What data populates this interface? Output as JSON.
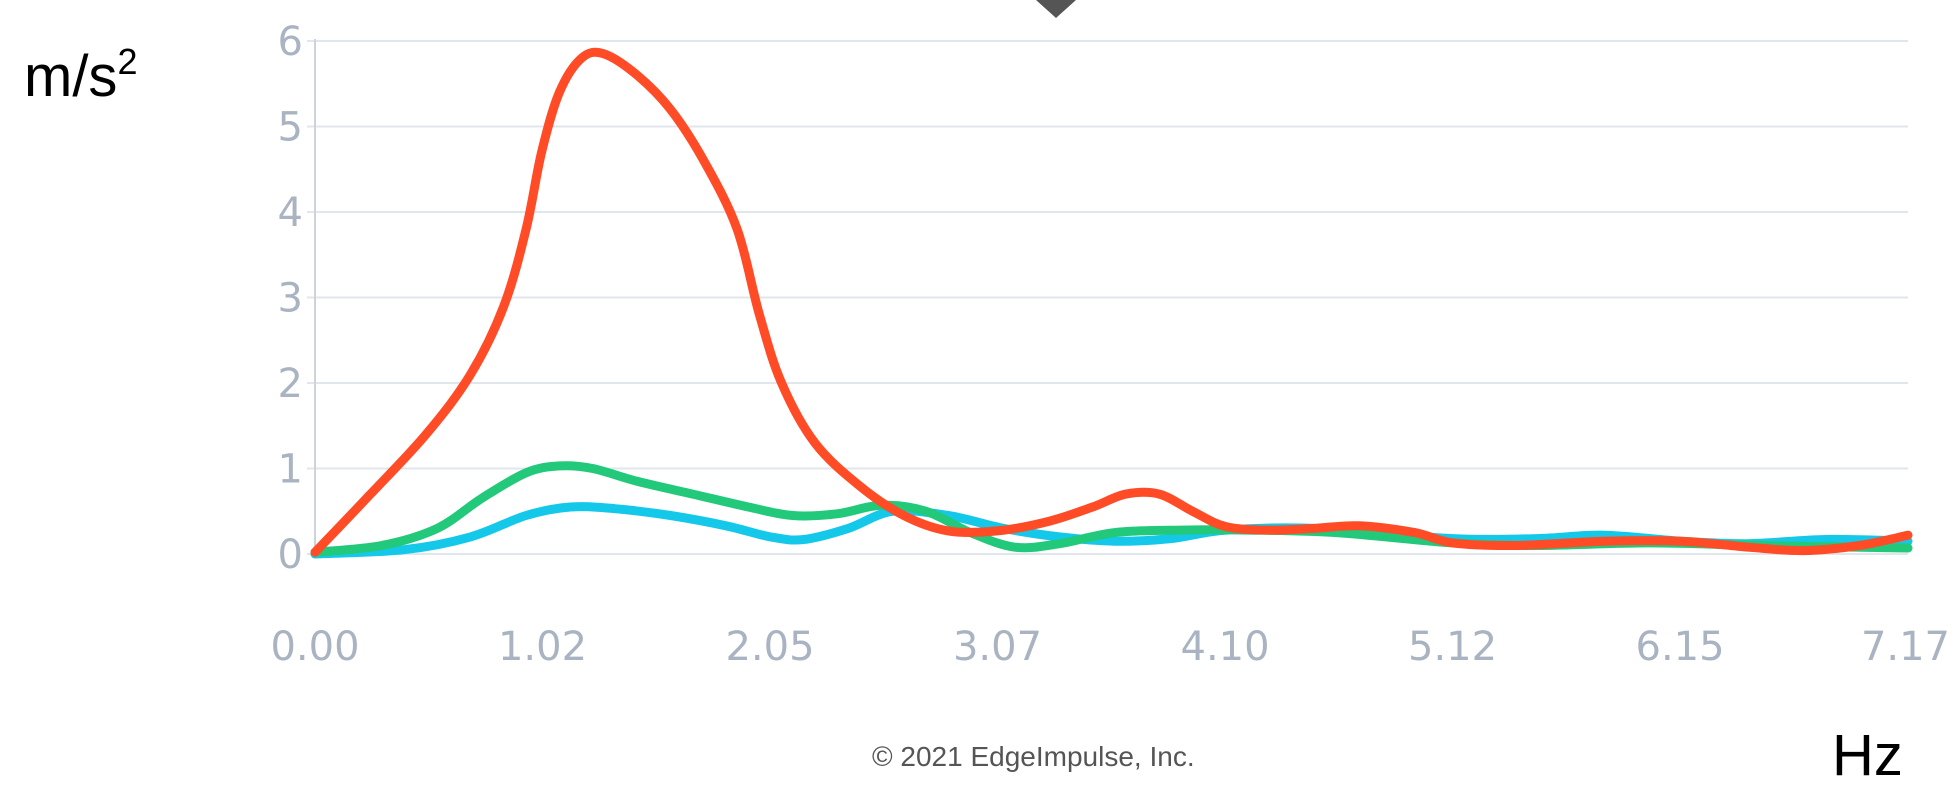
{
  "chart_data": {
    "type": "line",
    "ylabel": "m/s",
    "ylabel_superscript": "2",
    "xlabel": "Hz",
    "copyright": "© 2021 EdgeImpulse, Inc.",
    "xlim": [
      0,
      7.17
    ],
    "ylim": [
      0,
      6
    ],
    "y_ticks": [
      "0",
      "1",
      "2",
      "3",
      "4",
      "5",
      "6"
    ],
    "x_ticks": [
      "0.00",
      "1.02",
      "2.05",
      "3.07",
      "4.10",
      "5.12",
      "6.15",
      "7.17"
    ],
    "x_tick_values": [
      0,
      1.024,
      2.048,
      3.072,
      4.096,
      5.12,
      6.144,
      7.17
    ],
    "grid": true,
    "series": [
      {
        "color": "#ff4b26",
        "points": [
          [
            0.0,
            0.02
          ],
          [
            0.25,
            0.7
          ],
          [
            0.5,
            1.4
          ],
          [
            0.7,
            2.1
          ],
          [
            0.85,
            2.9
          ],
          [
            0.95,
            3.8
          ],
          [
            1.02,
            4.7
          ],
          [
            1.1,
            5.4
          ],
          [
            1.2,
            5.8
          ],
          [
            1.3,
            5.85
          ],
          [
            1.45,
            5.6
          ],
          [
            1.6,
            5.2
          ],
          [
            1.75,
            4.6
          ],
          [
            1.9,
            3.8
          ],
          [
            2.0,
            2.8
          ],
          [
            2.1,
            2.0
          ],
          [
            2.25,
            1.3
          ],
          [
            2.45,
            0.8
          ],
          [
            2.65,
            0.45
          ],
          [
            2.85,
            0.27
          ],
          [
            3.07,
            0.27
          ],
          [
            3.3,
            0.38
          ],
          [
            3.5,
            0.55
          ],
          [
            3.65,
            0.7
          ],
          [
            3.8,
            0.7
          ],
          [
            3.95,
            0.5
          ],
          [
            4.1,
            0.32
          ],
          [
            4.3,
            0.28
          ],
          [
            4.5,
            0.3
          ],
          [
            4.7,
            0.33
          ],
          [
            4.95,
            0.25
          ],
          [
            5.12,
            0.13
          ],
          [
            5.4,
            0.1
          ],
          [
            5.8,
            0.15
          ],
          [
            6.15,
            0.15
          ],
          [
            6.45,
            0.08
          ],
          [
            6.7,
            0.04
          ],
          [
            6.95,
            0.1
          ],
          [
            7.17,
            0.22
          ]
        ]
      },
      {
        "color": "#23c97a",
        "points": [
          [
            0.0,
            0.02
          ],
          [
            0.3,
            0.1
          ],
          [
            0.55,
            0.3
          ],
          [
            0.75,
            0.65
          ],
          [
            0.95,
            0.95
          ],
          [
            1.1,
            1.03
          ],
          [
            1.25,
            1.0
          ],
          [
            1.45,
            0.85
          ],
          [
            1.7,
            0.7
          ],
          [
            1.95,
            0.55
          ],
          [
            2.15,
            0.45
          ],
          [
            2.35,
            0.47
          ],
          [
            2.55,
            0.57
          ],
          [
            2.75,
            0.5
          ],
          [
            2.95,
            0.25
          ],
          [
            3.15,
            0.08
          ],
          [
            3.35,
            0.12
          ],
          [
            3.6,
            0.25
          ],
          [
            3.9,
            0.28
          ],
          [
            4.2,
            0.28
          ],
          [
            4.6,
            0.25
          ],
          [
            5.12,
            0.13
          ],
          [
            5.5,
            0.1
          ],
          [
            6.0,
            0.13
          ],
          [
            6.5,
            0.1
          ],
          [
            7.17,
            0.07
          ]
        ]
      },
      {
        "color": "#14c8ea",
        "points": [
          [
            0.0,
            0.0
          ],
          [
            0.4,
            0.05
          ],
          [
            0.7,
            0.2
          ],
          [
            0.95,
            0.45
          ],
          [
            1.15,
            0.55
          ],
          [
            1.35,
            0.53
          ],
          [
            1.6,
            0.45
          ],
          [
            1.85,
            0.33
          ],
          [
            2.05,
            0.2
          ],
          [
            2.2,
            0.17
          ],
          [
            2.4,
            0.3
          ],
          [
            2.6,
            0.5
          ],
          [
            2.85,
            0.45
          ],
          [
            3.1,
            0.3
          ],
          [
            3.35,
            0.2
          ],
          [
            3.6,
            0.15
          ],
          [
            3.85,
            0.18
          ],
          [
            4.1,
            0.28
          ],
          [
            4.5,
            0.3
          ],
          [
            5.12,
            0.18
          ],
          [
            5.5,
            0.18
          ],
          [
            5.8,
            0.22
          ],
          [
            6.15,
            0.15
          ],
          [
            6.45,
            0.12
          ],
          [
            6.8,
            0.17
          ],
          [
            7.17,
            0.15
          ]
        ]
      }
    ]
  }
}
